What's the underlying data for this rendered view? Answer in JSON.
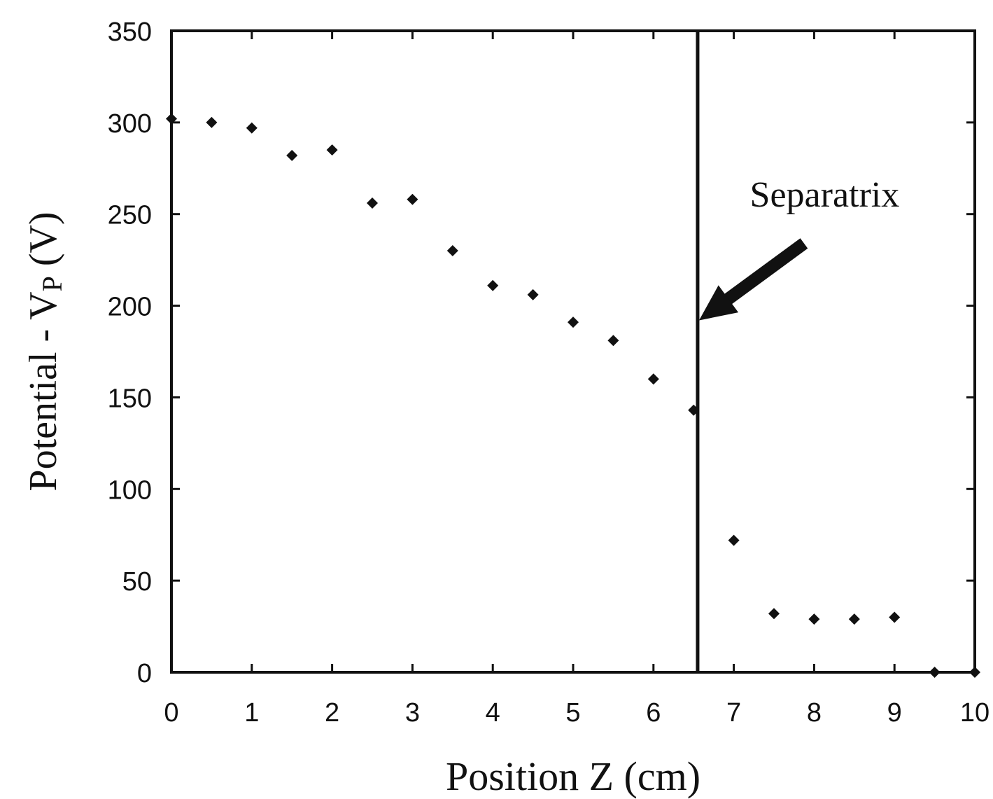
{
  "chart_data": {
    "type": "scatter",
    "xlabel": "Position Z (cm)",
    "ylabel_main": "Potential - V",
    "ylabel_sub": "P",
    "ylabel_unit": "(V)",
    "xlim": [
      0,
      10
    ],
    "ylim": [
      0,
      350
    ],
    "xticks": [
      0,
      1,
      2,
      3,
      4,
      5,
      6,
      7,
      8,
      9,
      10
    ],
    "yticks": [
      0,
      50,
      100,
      150,
      200,
      250,
      300,
      350
    ],
    "grid": false,
    "marker_color": "#111111",
    "points": {
      "x": [
        0,
        0.5,
        1,
        1.5,
        2,
        2.5,
        3,
        3.5,
        4,
        4.5,
        5,
        5.5,
        6,
        6.5,
        7,
        7.5,
        8,
        8.5,
        9,
        9.5,
        10
      ],
      "y": [
        302,
        300,
        297,
        282,
        285,
        256,
        258,
        230,
        211,
        206,
        191,
        181,
        160,
        143,
        72,
        32,
        29,
        29,
        30,
        0,
        0
      ]
    },
    "separatrix": {
      "x": 6.55,
      "label": "Separatrix"
    }
  }
}
